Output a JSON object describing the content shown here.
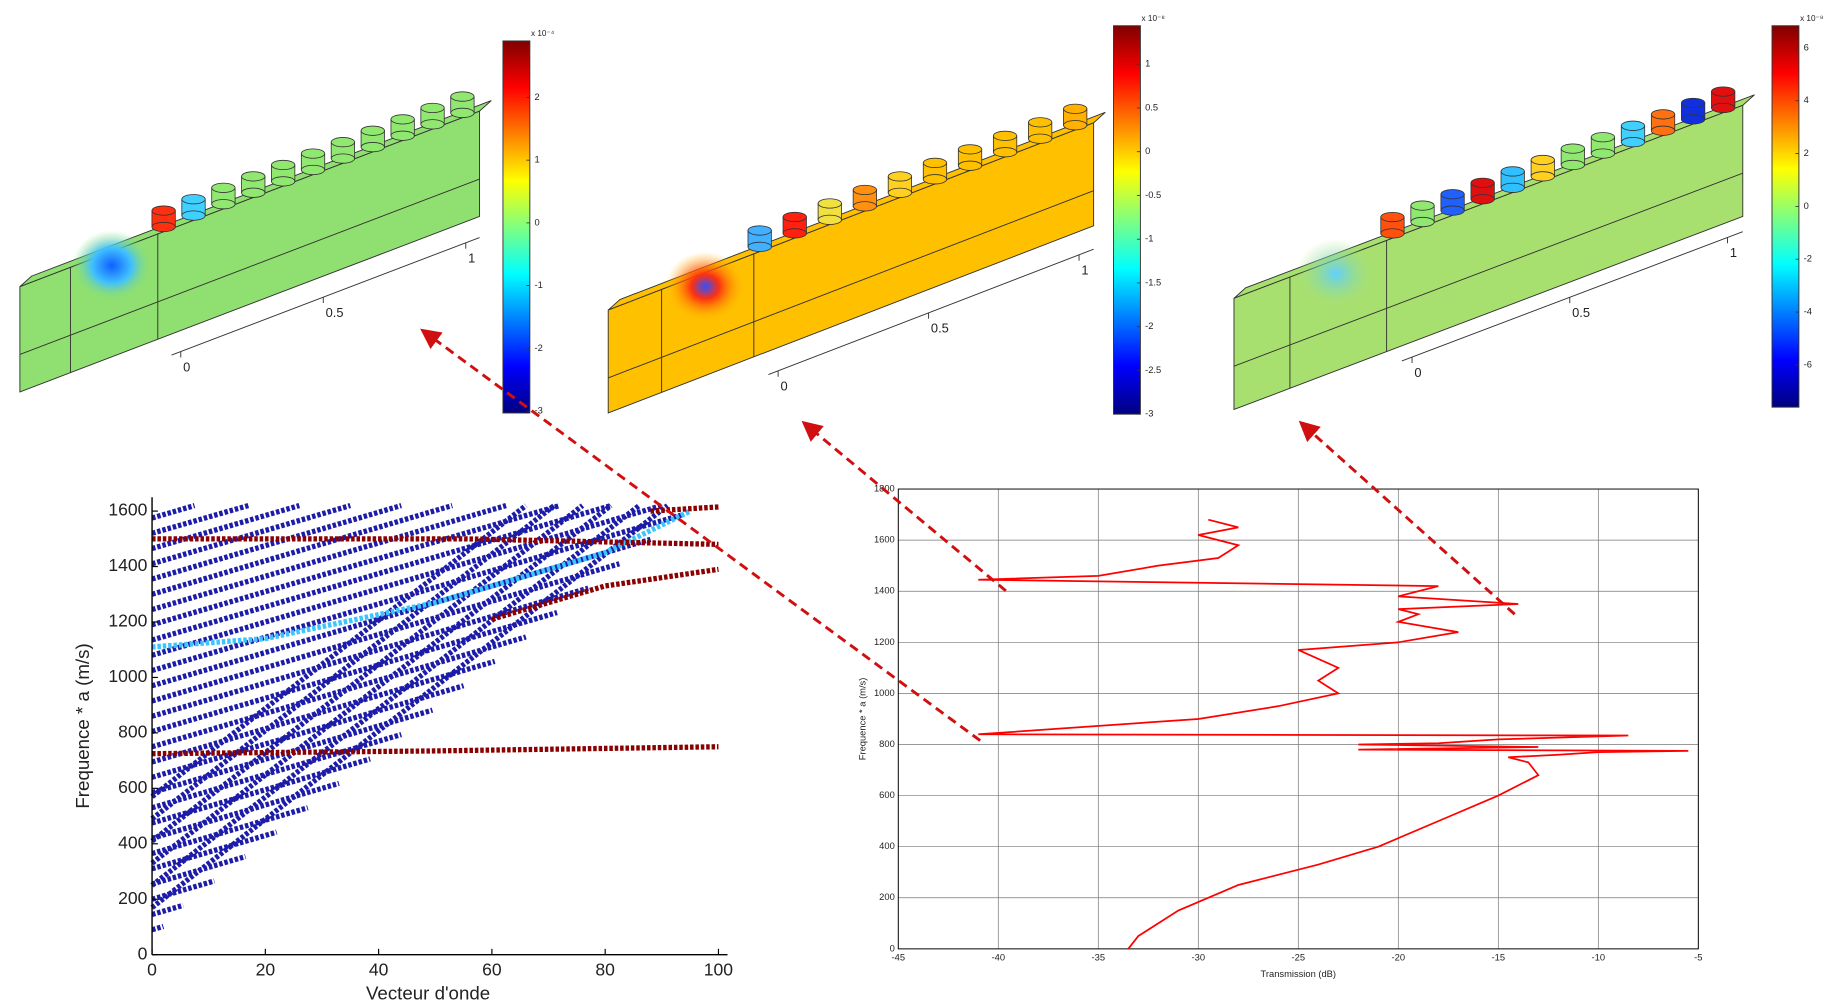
{
  "chart_data": [
    {
      "type": "field",
      "axis_labels": [
        0,
        0.5,
        1
      ],
      "clim": [
        -3.03,
        2.9
      ],
      "cticks": [
        -3,
        -2,
        -1,
        0,
        1,
        2
      ],
      "exponent": "x 10⁻⁴"
    },
    {
      "type": "field",
      "axis_labels": [
        0,
        0.5,
        1
      ],
      "clim": [
        -3,
        1.44
      ],
      "cticks": [
        -3,
        -2.5,
        -2,
        -1.5,
        -1,
        -0.5,
        0,
        0.5,
        1
      ],
      "exponent": "x 10⁻⁸"
    },
    {
      "type": "field",
      "axis_labels": [
        0,
        0.5,
        1
      ],
      "clim": [
        -7.6,
        6.84
      ],
      "cticks": [
        -6,
        -4,
        -2,
        0,
        2,
        4,
        6
      ],
      "exponent": "x 10⁻⁸"
    },
    {
      "type": "scatter",
      "x_label": "Vecteur d'onde",
      "y_label": "Frequence * a (m/s)",
      "xlim": [
        0,
        101.6
      ],
      "ylim": [
        0,
        1650
      ],
      "xticks": [
        0,
        20,
        40,
        60,
        80,
        100
      ],
      "yticks": [
        0,
        200,
        400,
        600,
        800,
        1000,
        1200,
        1400,
        1600
      ],
      "series": [
        {
          "color": "#1c1ca8",
          "x": [
            0,
            2
          ],
          "values": [
            90,
            102
          ]
        },
        {
          "color": "#1c1ca8",
          "x": [
            0,
            5.5
          ],
          "values": [
            145,
            178
          ]
        },
        {
          "color": "#1c1ca8",
          "x": [
            0,
            11
          ],
          "values": [
            200,
            266
          ]
        },
        {
          "color": "#1c1ca8",
          "x": [
            0,
            16.5
          ],
          "values": [
            255,
            354
          ]
        },
        {
          "color": "#1c1ca8",
          "x": [
            0,
            22
          ],
          "values": [
            310,
            442
          ]
        },
        {
          "color": "#1c1ca8",
          "x": [
            0,
            27.5
          ],
          "values": [
            365,
            530
          ]
        },
        {
          "color": "#1c1ca8",
          "x": [
            0,
            33
          ],
          "values": [
            420,
            618
          ]
        },
        {
          "color": "#1c1ca8",
          "x": [
            0,
            38.5
          ],
          "values": [
            475,
            706
          ]
        },
        {
          "color": "#1c1ca8",
          "x": [
            0,
            44
          ],
          "values": [
            530,
            794
          ]
        },
        {
          "color": "#1c1ca8",
          "x": [
            0,
            49.5
          ],
          "values": [
            585,
            882
          ]
        },
        {
          "color": "#1c1ca8",
          "x": [
            0,
            55
          ],
          "values": [
            640,
            970
          ]
        },
        {
          "color": "#1c1ca8",
          "x": [
            0,
            60.5
          ],
          "values": [
            695,
            1058
          ]
        },
        {
          "color": "#1c1ca8",
          "x": [
            0,
            66
          ],
          "values": [
            750,
            1146
          ]
        },
        {
          "color": "#1c1ca8",
          "x": [
            0,
            71.5
          ],
          "values": [
            805,
            1234
          ]
        },
        {
          "color": "#1c1ca8",
          "x": [
            0,
            77
          ],
          "values": [
            860,
            1322
          ]
        },
        {
          "color": "#1c1ca8",
          "x": [
            0,
            82.5
          ],
          "values": [
            915,
            1410
          ]
        },
        {
          "color": "#1c1ca8",
          "x": [
            0,
            88
          ],
          "values": [
            970,
            1498
          ]
        },
        {
          "color": "#1c1ca8",
          "x": [
            0,
            93.5
          ],
          "values": [
            1025,
            1586
          ]
        },
        {
          "color": "#1c1ca8",
          "x": [
            0,
            90
          ],
          "values": [
            1080,
            1620
          ]
        },
        {
          "color": "#1c1ca8",
          "x": [
            0,
            81
          ],
          "values": [
            1135,
            1620
          ]
        },
        {
          "color": "#1c1ca8",
          "x": [
            0,
            72
          ],
          "values": [
            1190,
            1620
          ]
        },
        {
          "color": "#1c1ca8",
          "x": [
            0,
            62.5
          ],
          "values": [
            1245,
            1620
          ]
        },
        {
          "color": "#1c1ca8",
          "x": [
            0,
            53
          ],
          "values": [
            1300,
            1620
          ]
        },
        {
          "color": "#1c1ca8",
          "x": [
            0,
            44
          ],
          "values": [
            1355,
            1620
          ]
        },
        {
          "color": "#1c1ca8",
          "x": [
            0,
            35
          ],
          "values": [
            1410,
            1620
          ]
        },
        {
          "color": "#1c1ca8",
          "x": [
            0,
            26
          ],
          "values": [
            1465,
            1620
          ]
        },
        {
          "color": "#1c1ca8",
          "x": [
            0,
            17
          ],
          "values": [
            1520,
            1620
          ]
        },
        {
          "color": "#1c1ca8",
          "x": [
            0,
            7.5
          ],
          "values": [
            1575,
            1620
          ]
        },
        {
          "color": "#1c1ca8",
          "x": [
            0,
            91
          ],
          "values": [
            170,
            1620
          ]
        },
        {
          "color": "#1c1ca8",
          "x": [
            0,
            86
          ],
          "values": [
            250,
            1620
          ]
        },
        {
          "color": "#1c1ca8",
          "x": [
            0,
            81
          ],
          "values": [
            330,
            1620
          ]
        },
        {
          "color": "#1c1ca8",
          "x": [
            0,
            76
          ],
          "values": [
            410,
            1620
          ]
        },
        {
          "color": "#1c1ca8",
          "x": [
            0,
            71
          ],
          "values": [
            490,
            1620
          ]
        },
        {
          "color": "#1c1ca8",
          "x": [
            0,
            66
          ],
          "values": [
            570,
            1620
          ]
        },
        {
          "color": "#3cc4ff",
          "x": [
            0,
            20,
            50,
            80,
            95
          ],
          "values": [
            1110,
            1140,
            1270,
            1450,
            1600
          ]
        },
        {
          "color": "#8b0000",
          "x": [
            0,
            55,
            100
          ],
          "values": [
            1500,
            1500,
            1480
          ]
        },
        {
          "color": "#8b0000",
          "x": [
            60,
            80,
            100
          ],
          "values": [
            1210,
            1330,
            1390
          ]
        },
        {
          "color": "#8b0000",
          "x": [
            0,
            50,
            100
          ],
          "values": [
            725,
            735,
            750
          ]
        },
        {
          "color": "#8b0000",
          "x": [
            88,
            100
          ],
          "values": [
            1600,
            1615
          ]
        }
      ]
    },
    {
      "type": "line",
      "x_label": "Transmission (dB)",
      "y_label": "Frequence * a (m/s)",
      "color": "#ff0000",
      "grid": true,
      "xlim": [
        -45,
        -5
      ],
      "ylim": [
        0,
        1800
      ],
      "xticks": [
        -45,
        -40,
        -35,
        -30,
        -25,
        -20,
        -15,
        -10,
        -5
      ],
      "yticks": [
        0,
        200,
        400,
        600,
        800,
        1000,
        1200,
        1400,
        1600,
        1800
      ],
      "x": [
        -33.5,
        -33,
        -31,
        -28,
        -24,
        -21,
        -18,
        -15,
        -13,
        -13.5,
        -14.5,
        -12,
        -10,
        -5.5,
        -22,
        -13,
        -22,
        -18,
        -15,
        -8.5,
        -41,
        -30,
        -26,
        -23,
        -24,
        -23,
        -25,
        -20,
        -17,
        -20,
        -19,
        -20,
        -14,
        -20,
        -18,
        -41,
        -35,
        -32,
        -29,
        -28,
        -30,
        -28,
        -29.5
      ],
      "values": [
        0,
        50,
        150,
        250,
        330,
        400,
        500,
        600,
        680,
        730,
        750,
        760,
        770,
        775,
        780,
        790,
        800,
        805,
        820,
        835,
        840,
        900,
        950,
        1000,
        1050,
        1100,
        1170,
        1200,
        1240,
        1280,
        1310,
        1330,
        1350,
        1380,
        1420,
        1445,
        1460,
        1500,
        1530,
        1580,
        1620,
        1650,
        1680
      ]
    }
  ]
}
